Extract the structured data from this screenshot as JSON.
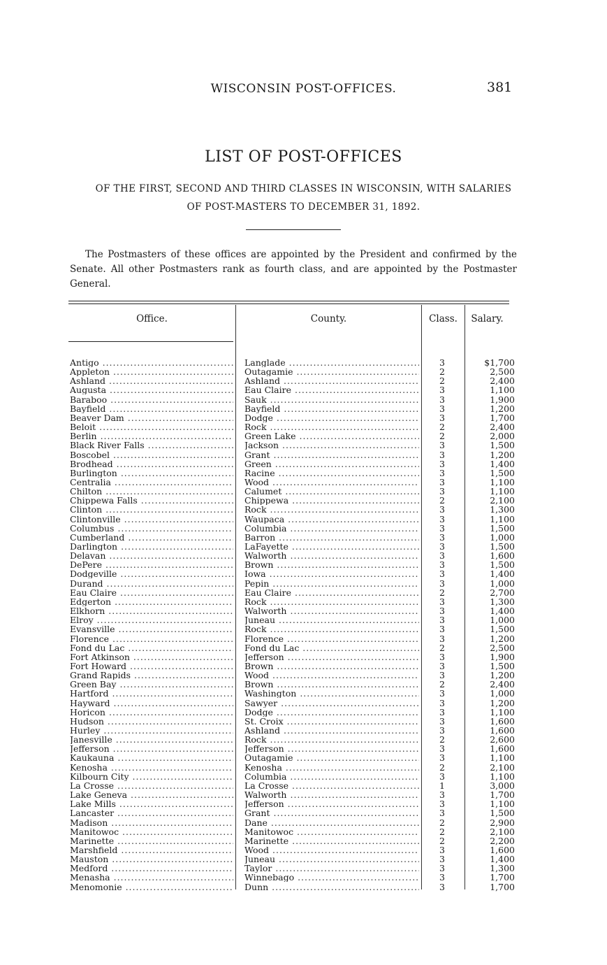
{
  "running_head": "WISCONSIN POST-OFFICES.",
  "page_number": "381",
  "title": "LIST OF POST-OFFICES",
  "subtitle_line1": "OF THE FIRST, SECOND AND THIRD CLASSES IN WISCONSIN, WITH SALARIES",
  "subtitle_line2": "OF POST-MASTERS TO DECEMBER 31, 1892.",
  "intro": "The Postmasters of these offices are appointed by the President and confirmed by the Senate. All other Postmasters rank as fourth class, and are appointed by the Postmaster General.",
  "table": {
    "headers": {
      "office": "Office.",
      "county": "County.",
      "class": "Class.",
      "salary": "Salary."
    },
    "rows": [
      [
        "Antigo",
        "Langlade",
        "3",
        "$1,700"
      ],
      [
        "Appleton",
        "Outagamie",
        "2",
        "2,500"
      ],
      [
        "Ashland",
        "Ashland",
        "2",
        "2,400"
      ],
      [
        "Augusta",
        "Eau Claire",
        "3",
        "1,100"
      ],
      [
        "Baraboo",
        "Sauk",
        "3",
        "1,900"
      ],
      [
        "Bayfield",
        "Bayfield",
        "3",
        "1,200"
      ],
      [
        "Beaver Dam",
        "Dodge",
        "3",
        "1,700"
      ],
      [
        "Beloit",
        "Rock",
        "2",
        "2,400"
      ],
      [
        "Berlin",
        "Green Lake",
        "2",
        "2,000"
      ],
      [
        "Black River Falls",
        "Jackson",
        "3",
        "1,500"
      ],
      [
        "Boscobel",
        "Grant",
        "3",
        "1,200"
      ],
      [
        "Brodhead",
        "Green",
        "3",
        "1,400"
      ],
      [
        "Burlington",
        "Racine",
        "3",
        "1,500"
      ],
      [
        "Centralia",
        "Wood",
        "3",
        "1,100"
      ],
      [
        "Chilton",
        "Calumet",
        "3",
        "1,100"
      ],
      [
        "Chippewa Falls",
        "Chippewa",
        "2",
        "2,100"
      ],
      [
        "Clinton",
        "Rock",
        "3",
        "1,300"
      ],
      [
        "Clintonville",
        "Waupaca",
        "3",
        "1,100"
      ],
      [
        "Columbus",
        "Columbia",
        "3",
        "1,500"
      ],
      [
        "Cumberland",
        "Barron",
        "3",
        "1,000"
      ],
      [
        "Darlington",
        "LaFayette",
        "3",
        "1,500"
      ],
      [
        "Delavan",
        "Walworth",
        "3",
        "1,600"
      ],
      [
        "DePere",
        "Brown",
        "3",
        "1,500"
      ],
      [
        "Dodgeville",
        "Iowa",
        "3",
        "1,400"
      ],
      [
        "Durand",
        "Pepin",
        "3",
        "1,000"
      ],
      [
        "Eau Claire",
        "Eau Claire",
        "2",
        "2,700"
      ],
      [
        "Edgerton",
        "Rock",
        "3",
        "1,300"
      ],
      [
        "Elkhorn",
        "Walworth",
        "3",
        "1,400"
      ],
      [
        "Elroy",
        "Juneau",
        "3",
        "1,000"
      ],
      [
        "Evansville",
        "Rock",
        "3",
        "1,500"
      ],
      [
        "Florence",
        "Florence",
        "3",
        "1,200"
      ],
      [
        "Fond du Lac",
        "Fond du Lac",
        "2",
        "2,500"
      ],
      [
        "Fort Atkinson",
        "Jefferson",
        "3",
        "1,900"
      ],
      [
        "Fort Howard",
        "Brown",
        "3",
        "1,500"
      ],
      [
        "Grand Rapids",
        "Wood",
        "3",
        "1,200"
      ],
      [
        "Green Bay",
        "Brown",
        "2",
        "2,400"
      ],
      [
        "Hartford",
        "Washington",
        "3",
        "1,000"
      ],
      [
        "Hayward",
        "Sawyer",
        "3",
        "1,200"
      ],
      [
        "Horicon",
        "Dodge",
        "3",
        "1,100"
      ],
      [
        "Hudson",
        "St. Croix",
        "3",
        "1,600"
      ],
      [
        "Hurley",
        "Ashland",
        "3",
        "1,600"
      ],
      [
        "Janesville",
        "Rock",
        "2",
        "2,600"
      ],
      [
        "Jefferson",
        "Jefferson",
        "3",
        "1,600"
      ],
      [
        "Kaukauna",
        "Outagamie",
        "3",
        "1,100"
      ],
      [
        "Kenosha",
        "Kenosha",
        "2",
        "2,100"
      ],
      [
        "Kilbourn City",
        "Columbia",
        "3",
        "1,100"
      ],
      [
        "La Crosse",
        "La Crosse",
        "1",
        "3,000"
      ],
      [
        "Lake Geneva",
        "Walworth",
        "3",
        "1,700"
      ],
      [
        "Lake Mills",
        "Jefferson",
        "3",
        "1,100"
      ],
      [
        "Lancaster",
        "Grant",
        "3",
        "1,500"
      ],
      [
        "Madison",
        "Dane",
        "2",
        "2,900"
      ],
      [
        "Manitowoc",
        "Manitowoc",
        "2",
        "2,100"
      ],
      [
        "Marinette",
        "Marinette",
        "2",
        "2,200"
      ],
      [
        "Marshfield",
        "Wood",
        "3",
        "1,600"
      ],
      [
        "Mauston",
        "Juneau",
        "3",
        "1,400"
      ],
      [
        "Medford",
        "Taylor",
        "3",
        "1,300"
      ],
      [
        "Menasha",
        "Winnebago",
        "3",
        "1,700"
      ],
      [
        "Menomonie",
        "Dunn",
        "3",
        "1,700"
      ]
    ]
  }
}
